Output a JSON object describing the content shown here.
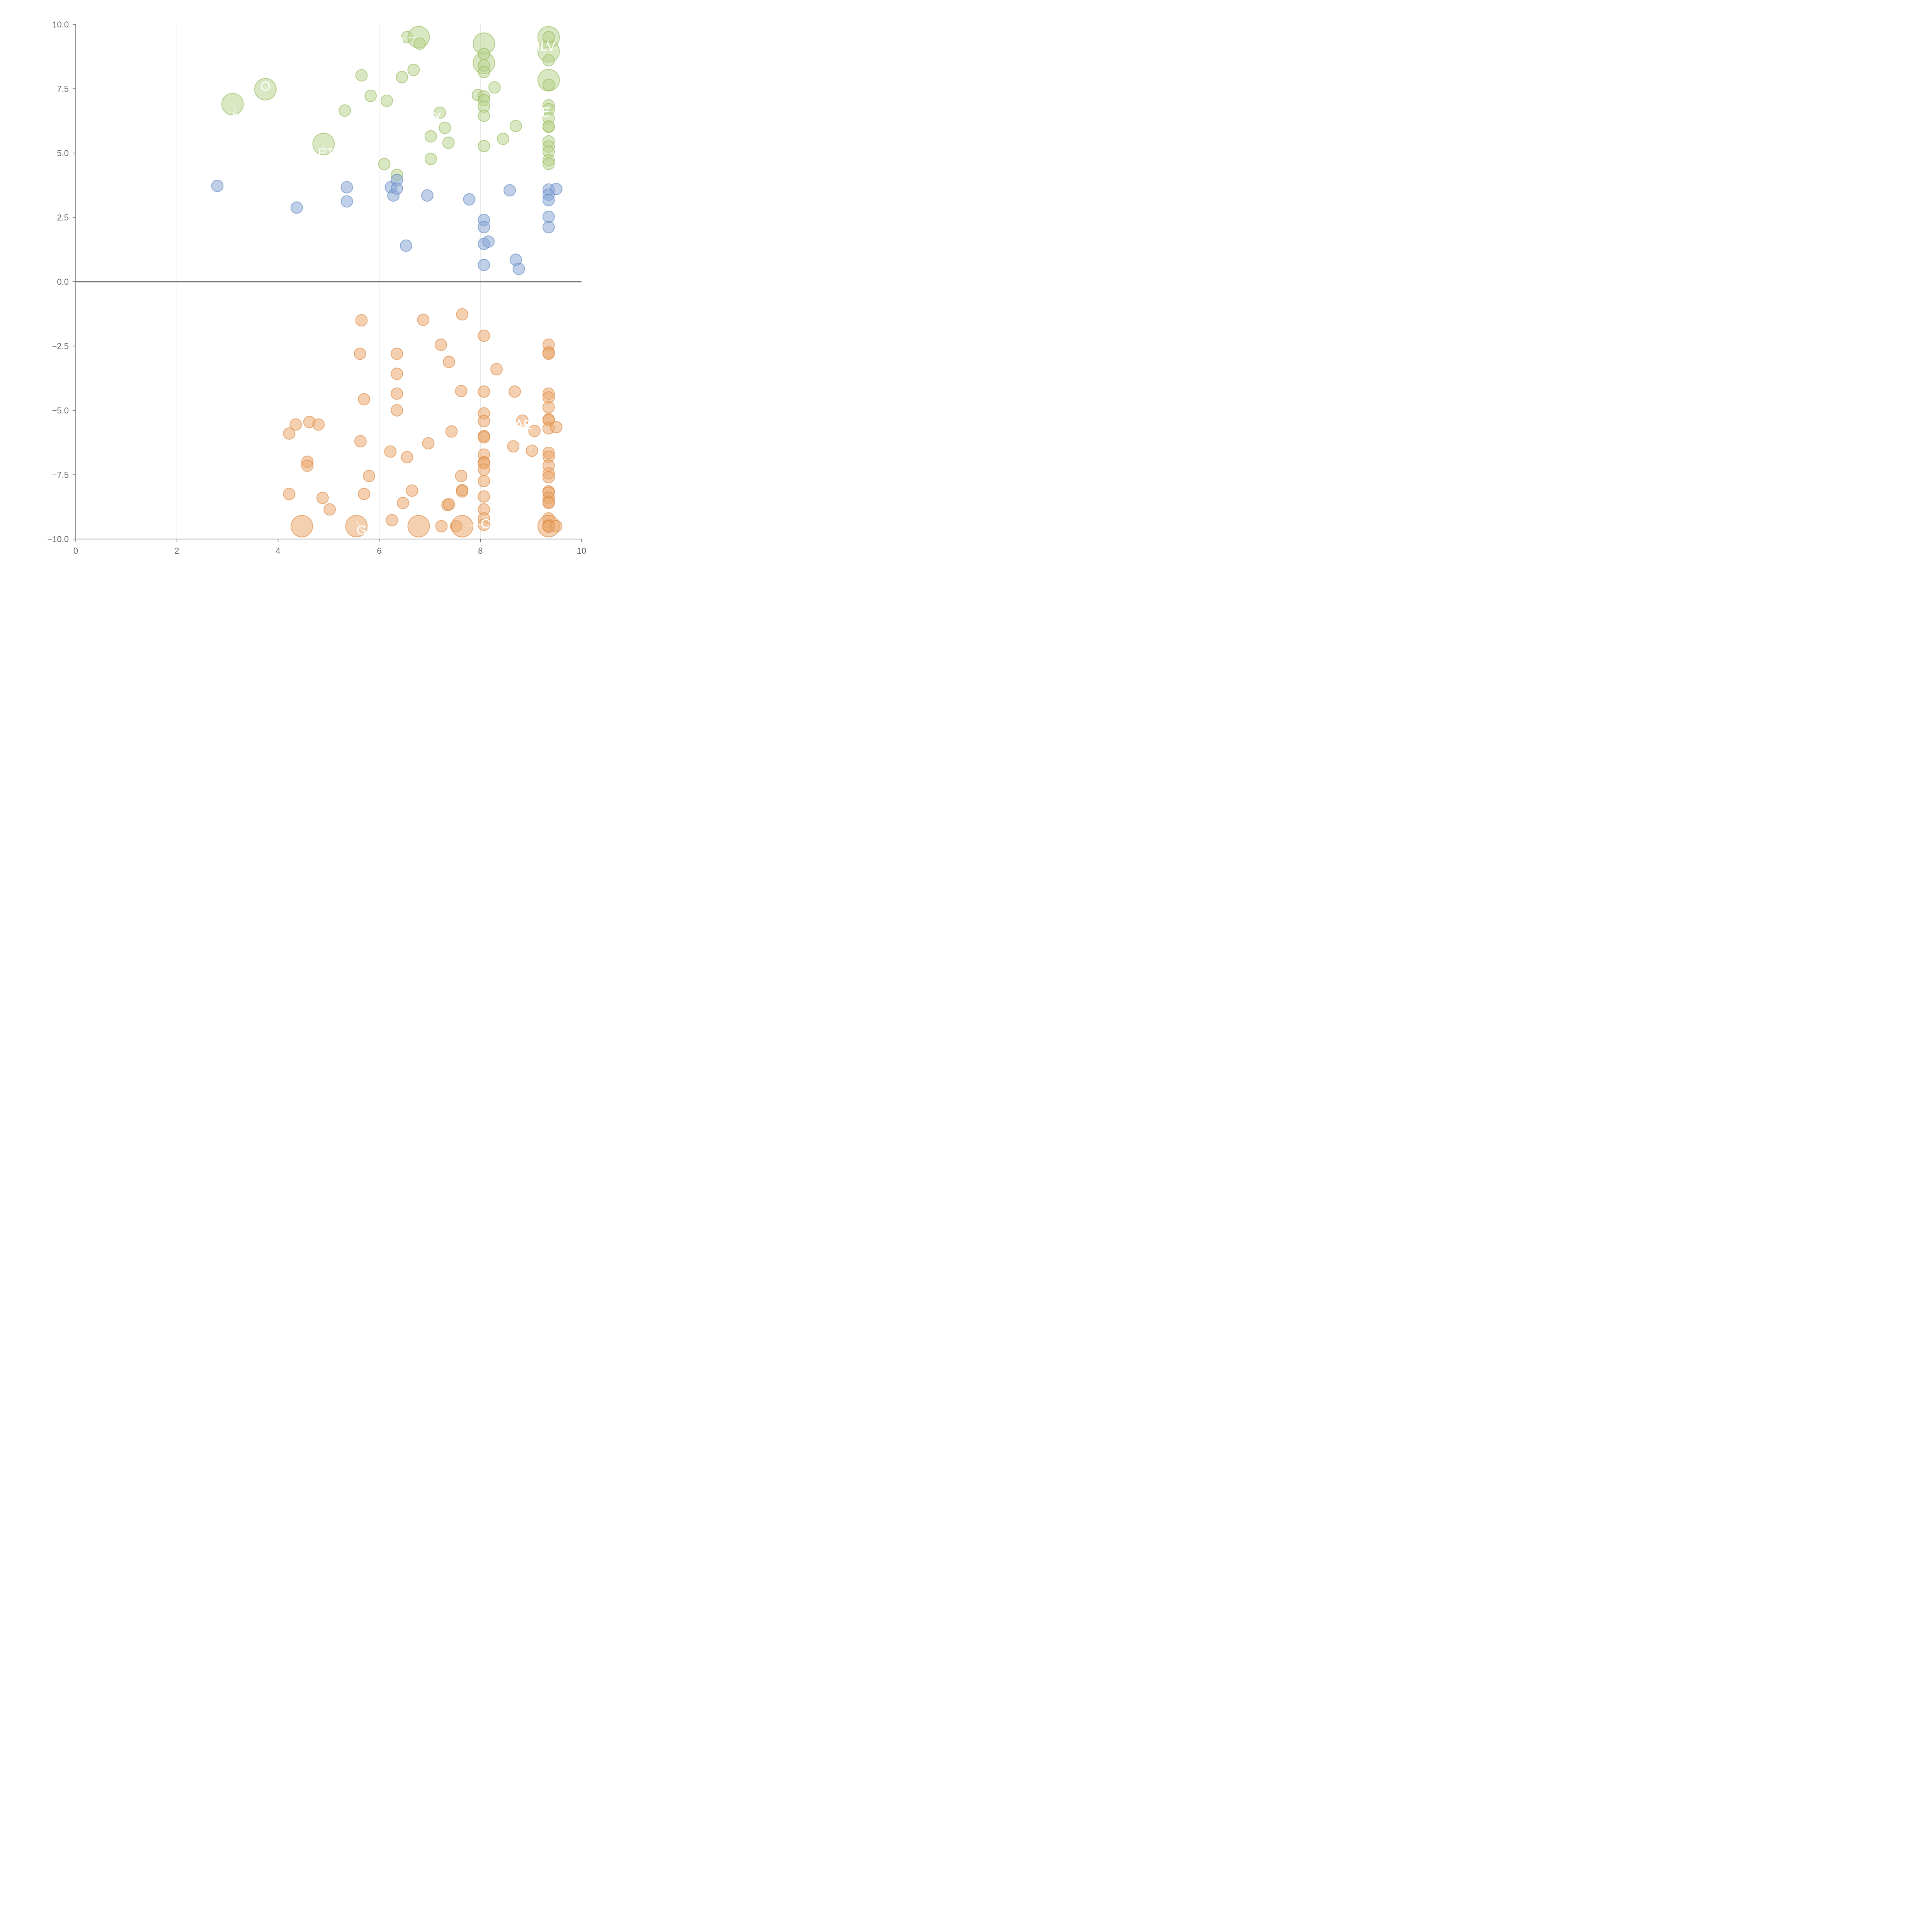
{
  "chart_data": {
    "type": "scatter",
    "title": "",
    "xlabel": "",
    "ylabel": "",
    "xlim": [
      0,
      10
    ],
    "ylim": [
      -10,
      10
    ],
    "x_ticks": [
      0,
      2,
      4,
      6,
      8,
      10
    ],
    "y_ticks": [
      -10,
      -7.5,
      -5,
      -2.5,
      0,
      2.5,
      5,
      7.5,
      10
    ],
    "x_tick_labels": [
      "0",
      "2",
      "4",
      "6",
      "8",
      "10"
    ],
    "y_tick_labels": [
      "−10.0",
      "−7.5",
      "−5.0",
      "−2.5",
      "0.0",
      "2.5",
      "5.0",
      "7.5",
      "10.0"
    ],
    "vertical_gridlines_at": [
      2,
      4,
      6,
      8
    ],
    "zero_line": true,
    "colors": {
      "green_fill": "#b9d48f",
      "green_stroke": "#8db553",
      "blue_fill": "#8aa8d6",
      "blue_stroke": "#5a82c0",
      "orange_fill": "#eba96f",
      "orange_stroke": "#d9823a",
      "axis": "#666666",
      "grid": "#dddddd",
      "zero": "#777777",
      "label": "#ffffff"
    },
    "series": [
      {
        "color_key": "green",
        "points": [
          {
            "x": 3.1,
            "y": 6.9,
            "r": 3
          },
          {
            "x": 3.75,
            "y": 7.48,
            "r": 3
          },
          {
            "x": 4.9,
            "y": 5.35,
            "r": 3
          },
          {
            "x": 5.32,
            "y": 6.65,
            "r": 1
          },
          {
            "x": 5.65,
            "y": 8.02,
            "r": 1
          },
          {
            "x": 5.83,
            "y": 7.22,
            "r": 1
          },
          {
            "x": 6.1,
            "y": 4.57,
            "r": 1
          },
          {
            "x": 6.15,
            "y": 7.03,
            "r": 1
          },
          {
            "x": 6.35,
            "y": 4.15,
            "r": 1
          },
          {
            "x": 6.45,
            "y": 7.95,
            "r": 1
          },
          {
            "x": 6.55,
            "y": 9.5,
            "r": 1
          },
          {
            "x": 6.68,
            "y": 8.23,
            "r": 1
          },
          {
            "x": 6.78,
            "y": 9.5,
            "r": 3
          },
          {
            "x": 6.8,
            "y": 9.25,
            "r": 1
          },
          {
            "x": 7.02,
            "y": 4.77,
            "r": 1
          },
          {
            "x": 7.02,
            "y": 5.65,
            "r": 1
          },
          {
            "x": 7.2,
            "y": 6.57,
            "r": 1
          },
          {
            "x": 7.3,
            "y": 5.98,
            "r": 1
          },
          {
            "x": 7.37,
            "y": 5.4,
            "r": 1
          },
          {
            "x": 7.95,
            "y": 7.25,
            "r": 1
          },
          {
            "x": 8.07,
            "y": 9.25,
            "r": 3
          },
          {
            "x": 8.07,
            "y": 8.5,
            "r": 3
          },
          {
            "x": 8.07,
            "y": 8.85,
            "r": 1
          },
          {
            "x": 8.07,
            "y": 8.4,
            "r": 1
          },
          {
            "x": 8.07,
            "y": 8.15,
            "r": 1
          },
          {
            "x": 8.07,
            "y": 7.2,
            "r": 1
          },
          {
            "x": 8.07,
            "y": 7.05,
            "r": 1
          },
          {
            "x": 8.07,
            "y": 6.8,
            "r": 1
          },
          {
            "x": 8.07,
            "y": 6.45,
            "r": 1
          },
          {
            "x": 8.07,
            "y": 5.27,
            "r": 1
          },
          {
            "x": 8.28,
            "y": 7.55,
            "r": 1
          },
          {
            "x": 8.45,
            "y": 5.55,
            "r": 1
          },
          {
            "x": 8.7,
            "y": 6.05,
            "r": 1
          },
          {
            "x": 9.35,
            "y": 9.5,
            "r": 3
          },
          {
            "x": 9.35,
            "y": 8.95,
            "r": 3
          },
          {
            "x": 9.35,
            "y": 7.83,
            "r": 3
          },
          {
            "x": 9.35,
            "y": 9.5,
            "r": 1
          },
          {
            "x": 9.35,
            "y": 8.6,
            "r": 1
          },
          {
            "x": 9.35,
            "y": 7.65,
            "r": 1
          },
          {
            "x": 9.35,
            "y": 6.85,
            "r": 1
          },
          {
            "x": 9.35,
            "y": 6.7,
            "r": 1
          },
          {
            "x": 9.35,
            "y": 6.35,
            "r": 1
          },
          {
            "x": 9.35,
            "y": 6.02,
            "r": 1
          },
          {
            "x": 9.35,
            "y": 6.03,
            "r": 1
          },
          {
            "x": 9.35,
            "y": 5.45,
            "r": 1
          },
          {
            "x": 9.35,
            "y": 5.25,
            "r": 1
          },
          {
            "x": 9.35,
            "y": 5.05,
            "r": 1
          },
          {
            "x": 9.35,
            "y": 4.72,
            "r": 1
          },
          {
            "x": 9.35,
            "y": 4.58,
            "r": 1
          }
        ]
      },
      {
        "color_key": "blue",
        "points": [
          {
            "x": 2.8,
            "y": 3.72,
            "r": 1
          },
          {
            "x": 4.37,
            "y": 2.88,
            "r": 1
          },
          {
            "x": 5.36,
            "y": 3.67,
            "r": 1
          },
          {
            "x": 5.36,
            "y": 3.12,
            "r": 1
          },
          {
            "x": 6.23,
            "y": 3.67,
            "r": 1
          },
          {
            "x": 6.28,
            "y": 3.35,
            "r": 1
          },
          {
            "x": 6.35,
            "y": 3.95,
            "r": 1
          },
          {
            "x": 6.35,
            "y": 3.62,
            "r": 1
          },
          {
            "x": 6.53,
            "y": 1.4,
            "r": 1
          },
          {
            "x": 6.95,
            "y": 3.35,
            "r": 1
          },
          {
            "x": 7.78,
            "y": 3.2,
            "r": 1
          },
          {
            "x": 8.07,
            "y": 2.4,
            "r": 1
          },
          {
            "x": 8.07,
            "y": 2.12,
            "r": 1
          },
          {
            "x": 8.07,
            "y": 1.47,
            "r": 1
          },
          {
            "x": 8.16,
            "y": 1.56,
            "r": 1
          },
          {
            "x": 8.07,
            "y": 0.65,
            "r": 1
          },
          {
            "x": 8.58,
            "y": 3.55,
            "r": 1
          },
          {
            "x": 8.7,
            "y": 0.85,
            "r": 1
          },
          {
            "x": 8.76,
            "y": 0.5,
            "r": 1
          },
          {
            "x": 9.35,
            "y": 3.58,
            "r": 1
          },
          {
            "x": 9.35,
            "y": 3.38,
            "r": 1
          },
          {
            "x": 9.35,
            "y": 3.17,
            "r": 1
          },
          {
            "x": 9.35,
            "y": 2.52,
            "r": 1
          },
          {
            "x": 9.35,
            "y": 2.12,
            "r": 1
          },
          {
            "x": 9.5,
            "y": 3.6,
            "r": 1
          }
        ]
      },
      {
        "color_key": "orange",
        "points": [
          {
            "x": 4.22,
            "y": -5.9,
            "r": 1
          },
          {
            "x": 4.22,
            "y": -8.25,
            "r": 1
          },
          {
            "x": 4.35,
            "y": -5.55,
            "r": 1
          },
          {
            "x": 4.47,
            "y": -9.5,
            "r": 3
          },
          {
            "x": 4.58,
            "y": -7.0,
            "r": 1
          },
          {
            "x": 4.58,
            "y": -7.15,
            "r": 1
          },
          {
            "x": 4.62,
            "y": -5.45,
            "r": 1
          },
          {
            "x": 4.8,
            "y": -5.55,
            "r": 1
          },
          {
            "x": 4.88,
            "y": -8.4,
            "r": 1
          },
          {
            "x": 5.02,
            "y": -8.85,
            "r": 1
          },
          {
            "x": 5.55,
            "y": -9.5,
            "r": 3
          },
          {
            "x": 5.62,
            "y": -2.8,
            "r": 1
          },
          {
            "x": 5.63,
            "y": -6.2,
            "r": 1
          },
          {
            "x": 5.65,
            "y": -1.5,
            "r": 1
          },
          {
            "x": 5.7,
            "y": -4.57,
            "r": 1
          },
          {
            "x": 5.7,
            "y": -8.25,
            "r": 1
          },
          {
            "x": 5.8,
            "y": -7.55,
            "r": 1
          },
          {
            "x": 6.22,
            "y": -6.6,
            "r": 1
          },
          {
            "x": 6.25,
            "y": -9.27,
            "r": 1
          },
          {
            "x": 6.35,
            "y": -2.8,
            "r": 1
          },
          {
            "x": 6.35,
            "y": -3.58,
            "r": 1
          },
          {
            "x": 6.35,
            "y": -4.35,
            "r": 1
          },
          {
            "x": 6.35,
            "y": -5.0,
            "r": 1
          },
          {
            "x": 6.47,
            "y": -8.6,
            "r": 1
          },
          {
            "x": 6.55,
            "y": -6.82,
            "r": 1
          },
          {
            "x": 6.65,
            "y": -8.12,
            "r": 1
          },
          {
            "x": 6.78,
            "y": -9.5,
            "r": 3
          },
          {
            "x": 6.87,
            "y": -1.48,
            "r": 1
          },
          {
            "x": 6.97,
            "y": -6.28,
            "r": 1
          },
          {
            "x": 7.22,
            "y": -2.45,
            "r": 1
          },
          {
            "x": 7.23,
            "y": -9.5,
            "r": 1
          },
          {
            "x": 7.35,
            "y": -8.68,
            "r": 1
          },
          {
            "x": 7.38,
            "y": -3.12,
            "r": 1
          },
          {
            "x": 7.38,
            "y": -8.65,
            "r": 1
          },
          {
            "x": 7.43,
            "y": -5.82,
            "r": 1
          },
          {
            "x": 7.52,
            "y": -9.5,
            "r": 1
          },
          {
            "x": 7.62,
            "y": -4.25,
            "r": 1
          },
          {
            "x": 7.62,
            "y": -7.55,
            "r": 1
          },
          {
            "x": 7.64,
            "y": -1.27,
            "r": 1
          },
          {
            "x": 7.64,
            "y": -8.1,
            "r": 1
          },
          {
            "x": 7.64,
            "y": -8.15,
            "r": 1
          },
          {
            "x": 7.64,
            "y": -9.5,
            "r": 3
          },
          {
            "x": 8.07,
            "y": -2.1,
            "r": 1
          },
          {
            "x": 8.07,
            "y": -4.27,
            "r": 1
          },
          {
            "x": 8.07,
            "y": -5.12,
            "r": 1
          },
          {
            "x": 8.07,
            "y": -5.42,
            "r": 1
          },
          {
            "x": 8.07,
            "y": -6.0,
            "r": 1
          },
          {
            "x": 8.07,
            "y": -6.05,
            "r": 1
          },
          {
            "x": 8.07,
            "y": -6.72,
            "r": 1
          },
          {
            "x": 8.07,
            "y": -7.02,
            "r": 1
          },
          {
            "x": 8.07,
            "y": -7.05,
            "r": 1
          },
          {
            "x": 8.07,
            "y": -7.3,
            "r": 1
          },
          {
            "x": 8.07,
            "y": -7.75,
            "r": 1
          },
          {
            "x": 8.07,
            "y": -8.35,
            "r": 1
          },
          {
            "x": 8.07,
            "y": -8.85,
            "r": 1
          },
          {
            "x": 8.07,
            "y": -9.2,
            "r": 1
          },
          {
            "x": 8.07,
            "y": -9.45,
            "r": 1
          },
          {
            "x": 8.32,
            "y": -3.4,
            "r": 1
          },
          {
            "x": 8.65,
            "y": -6.4,
            "r": 1
          },
          {
            "x": 8.68,
            "y": -4.27,
            "r": 1
          },
          {
            "x": 8.83,
            "y": -5.4,
            "r": 1
          },
          {
            "x": 9.02,
            "y": -6.57,
            "r": 1
          },
          {
            "x": 9.07,
            "y": -5.8,
            "r": 1
          },
          {
            "x": 9.35,
            "y": -2.45,
            "r": 1
          },
          {
            "x": 9.35,
            "y": -2.75,
            "r": 1
          },
          {
            "x": 9.35,
            "y": -2.8,
            "r": 1
          },
          {
            "x": 9.35,
            "y": -4.35,
            "r": 1
          },
          {
            "x": 9.35,
            "y": -4.5,
            "r": 1
          },
          {
            "x": 9.35,
            "y": -4.88,
            "r": 1
          },
          {
            "x": 9.35,
            "y": -5.35,
            "r": 1
          },
          {
            "x": 9.35,
            "y": -5.38,
            "r": 1
          },
          {
            "x": 9.35,
            "y": -5.7,
            "r": 1
          },
          {
            "x": 9.35,
            "y": -6.65,
            "r": 1
          },
          {
            "x": 9.35,
            "y": -6.8,
            "r": 1
          },
          {
            "x": 9.35,
            "y": -7.15,
            "r": 1
          },
          {
            "x": 9.35,
            "y": -7.45,
            "r": 1
          },
          {
            "x": 9.35,
            "y": -7.6,
            "r": 1
          },
          {
            "x": 9.35,
            "y": -8.15,
            "r": 1
          },
          {
            "x": 9.35,
            "y": -8.2,
            "r": 1
          },
          {
            "x": 9.35,
            "y": -8.4,
            "r": 1
          },
          {
            "x": 9.35,
            "y": -8.55,
            "r": 1
          },
          {
            "x": 9.35,
            "y": -8.6,
            "r": 1
          },
          {
            "x": 9.35,
            "y": -9.2,
            "r": 1
          },
          {
            "x": 9.35,
            "y": -9.45,
            "r": 1
          },
          {
            "x": 9.35,
            "y": -9.5,
            "r": 3
          },
          {
            "x": 9.35,
            "y": -9.5,
            "r": 1
          },
          {
            "x": 9.35,
            "y": -9.52,
            "r": 1
          },
          {
            "x": 9.5,
            "y": -5.65,
            "r": 1
          },
          {
            "x": 9.5,
            "y": -9.5,
            "r": 1
          }
        ]
      }
    ],
    "annotations": [
      {
        "text": "M",
        "x": 3.2,
        "y": 6.4,
        "from_x": 3.12,
        "from_y": 6.85
      },
      {
        "text": "O",
        "x": 3.75,
        "y": 7.6,
        "from_x": 3.75,
        "from_y": 7.48
      },
      {
        "text": "ET",
        "x": 4.95,
        "y": 5.0,
        "from_x": 4.9,
        "from_y": 5.3
      },
      {
        "text": "A",
        "x": 6.4,
        "y": 9.45,
        "from_x": 6.75,
        "from_y": 9.5
      },
      {
        "text": "X",
        "x": 7.15,
        "y": 6.4,
        "from_x": 7.2,
        "from_y": 6.55
      },
      {
        "text": "ILV",
        "x": 9.3,
        "y": 9.15,
        "from_x": 9.35,
        "from_y": 9.4
      },
      {
        "text": "E",
        "x": 9.3,
        "y": 6.6,
        "from_x": 9.35,
        "from_y": 6.8
      },
      {
        "text": "AE",
        "x": 8.85,
        "y": -5.55,
        "from_x": 9.0,
        "from_y": -6.55
      },
      {
        "text": "G",
        "x": 5.65,
        "y": -9.65,
        "from_x": 5.55,
        "from_y": -9.3
      },
      {
        "text": "C",
        "x": 8.1,
        "y": -9.4,
        "from_x": 7.75,
        "from_y": -9.5
      }
    ]
  }
}
